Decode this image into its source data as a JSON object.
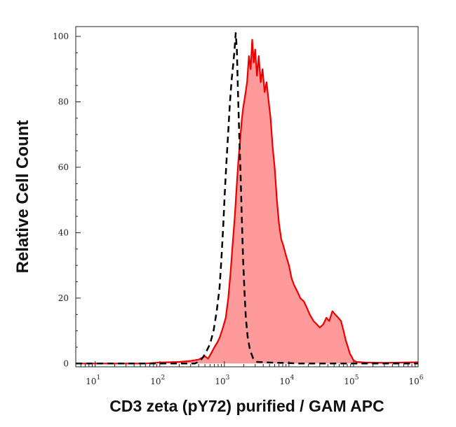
{
  "chart_data": {
    "type": "area",
    "title": "",
    "xlabel": "CD3 zeta (pY72) purified / GAM APC",
    "ylabel": "Relative Cell Count",
    "x_scale": "log",
    "xlim": [
      5,
      1000000
    ],
    "ylim": [
      -1,
      103
    ],
    "x_ticks": [
      {
        "value": 10,
        "exp": "1"
      },
      {
        "value": 100,
        "exp": "2"
      },
      {
        "value": 1000,
        "exp": "3"
      },
      {
        "value": 10000,
        "exp": "4"
      },
      {
        "value": 100000,
        "exp": "5"
      },
      {
        "value": 1000000,
        "exp": "6"
      }
    ],
    "y_ticks": [
      0,
      20,
      40,
      60,
      80,
      100
    ],
    "grid": false,
    "legend": "none",
    "colors": {
      "stained_line": "#ee0000",
      "stained_fill": "#ff9a9a",
      "control_line": "#000000"
    },
    "series": [
      {
        "style": "red-filled",
        "points": [
          [
            5,
            0
          ],
          [
            60,
            0
          ],
          [
            100,
            0.3
          ],
          [
            200,
            0.5
          ],
          [
            300,
            0.8
          ],
          [
            400,
            1.2
          ],
          [
            500,
            2.2
          ],
          [
            560,
            1.5
          ],
          [
            620,
            3
          ],
          [
            700,
            5
          ],
          [
            780,
            6.5
          ],
          [
            850,
            8
          ],
          [
            950,
            11
          ],
          [
            1050,
            14
          ],
          [
            1150,
            20
          ],
          [
            1250,
            28
          ],
          [
            1350,
            37
          ],
          [
            1450,
            45
          ],
          [
            1550,
            54
          ],
          [
            1650,
            62
          ],
          [
            1750,
            68
          ],
          [
            1850,
            74
          ],
          [
            1950,
            78
          ],
          [
            2100,
            82
          ],
          [
            2250,
            86
          ],
          [
            2400,
            94
          ],
          [
            2550,
            90
          ],
          [
            2700,
            99
          ],
          [
            2850,
            92
          ],
          [
            3000,
            96
          ],
          [
            3200,
            88
          ],
          [
            3400,
            94
          ],
          [
            3650,
            86
          ],
          [
            3900,
            90
          ],
          [
            4200,
            83
          ],
          [
            4500,
            86
          ],
          [
            4800,
            81
          ],
          [
            5200,
            75
          ],
          [
            5600,
            66
          ],
          [
            6000,
            60
          ],
          [
            6500,
            50
          ],
          [
            7000,
            43
          ],
          [
            7600,
            38
          ],
          [
            8200,
            36
          ],
          [
            9000,
            33
          ],
          [
            10000,
            30
          ],
          [
            11000,
            26
          ],
          [
            12000,
            24
          ],
          [
            13500,
            22
          ],
          [
            15000,
            20
          ],
          [
            17000,
            19
          ],
          [
            19000,
            17
          ],
          [
            21000,
            15
          ],
          [
            24000,
            13
          ],
          [
            27000,
            12
          ],
          [
            30000,
            11
          ],
          [
            34000,
            12
          ],
          [
            38000,
            14
          ],
          [
            42000,
            13
          ],
          [
            47000,
            16
          ],
          [
            52000,
            15
          ],
          [
            58000,
            14
          ],
          [
            64000,
            13
          ],
          [
            70000,
            10
          ],
          [
            76000,
            7
          ],
          [
            82000,
            5
          ],
          [
            88000,
            3
          ],
          [
            94000,
            2
          ],
          [
            100000,
            1
          ],
          [
            110000,
            0.5
          ],
          [
            150000,
            0.3
          ],
          [
            300000,
            0.2
          ],
          [
            600000,
            0.3
          ],
          [
            1000000,
            0.4
          ]
        ]
      },
      {
        "style": "black-dashed",
        "points": [
          [
            5,
            0
          ],
          [
            350,
            0
          ],
          [
            420,
            0.8
          ],
          [
            470,
            2
          ],
          [
            520,
            3.5
          ],
          [
            600,
            6
          ],
          [
            680,
            10
          ],
          [
            760,
            16
          ],
          [
            840,
            23
          ],
          [
            900,
            32
          ],
          [
            960,
            42
          ],
          [
            1020,
            53
          ],
          [
            1080,
            62
          ],
          [
            1150,
            71
          ],
          [
            1220,
            80
          ],
          [
            1300,
            87
          ],
          [
            1380,
            92
          ],
          [
            1450,
            97
          ],
          [
            1500,
            101
          ],
          [
            1560,
            96
          ],
          [
            1620,
            84
          ],
          [
            1700,
            70
          ],
          [
            1780,
            58
          ],
          [
            1860,
            45
          ],
          [
            1950,
            32
          ],
          [
            2050,
            22
          ],
          [
            2150,
            14
          ],
          [
            2300,
            8
          ],
          [
            2500,
            4
          ],
          [
            2800,
            1.5
          ],
          [
            3200,
            0.5
          ],
          [
            5000,
            0.3
          ],
          [
            8000,
            0.2
          ],
          [
            15000,
            0
          ],
          [
            1000000,
            0
          ]
        ]
      }
    ]
  }
}
